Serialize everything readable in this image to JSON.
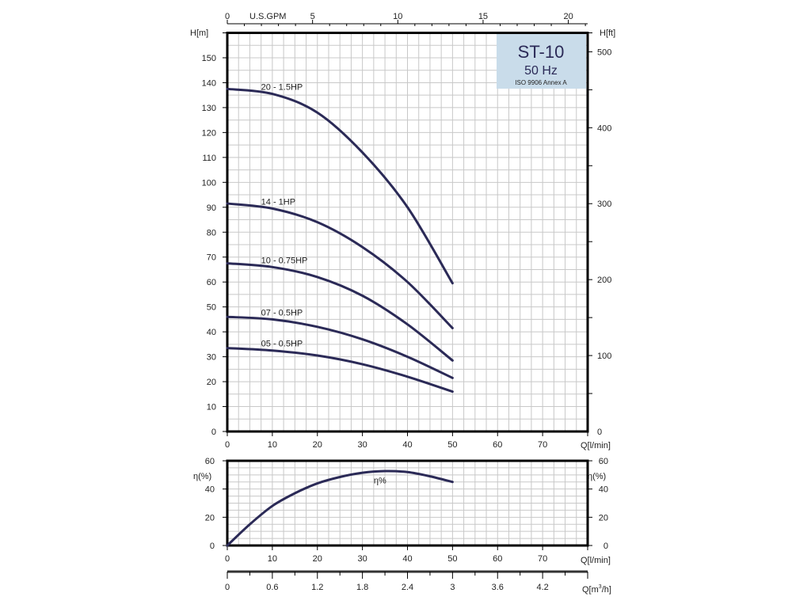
{
  "chart_data": [
    {
      "type": "line",
      "title": "ST-10",
      "subtitle": "50 Hz",
      "note": "ISO 9906 Annex A",
      "xlabel": "Q[l/min]",
      "ylabel": "H[m]",
      "ylabel_right": "H[ft]",
      "xlabel_top": "U.S.GPM",
      "xlim": [
        0,
        80
      ],
      "ylim": [
        0,
        160
      ],
      "x_ticks": [
        0,
        10,
        20,
        30,
        40,
        50,
        60,
        70
      ],
      "y_ticks": [
        0,
        10,
        20,
        30,
        40,
        50,
        60,
        70,
        80,
        90,
        100,
        110,
        120,
        130,
        140,
        150
      ],
      "y_right_ticks": [
        0,
        100,
        200,
        300,
        400,
        500
      ],
      "x_top_ticks": [
        0,
        5,
        10,
        15,
        20
      ],
      "grid": true,
      "series": [
        {
          "name": "20 - 1.5HP",
          "x": [
            0,
            10,
            20,
            30,
            40,
            50
          ],
          "y": [
            137.5,
            135.5,
            128,
            112,
            90,
            59.5
          ]
        },
        {
          "name": "14 - 1HP",
          "x": [
            0,
            10,
            20,
            30,
            40,
            50
          ],
          "y": [
            91.5,
            89.5,
            84,
            74,
            60,
            41.5
          ]
        },
        {
          "name": "10 - 0.75HP",
          "x": [
            0,
            10,
            20,
            30,
            40,
            50
          ],
          "y": [
            67.5,
            66,
            62,
            54.5,
            43,
            28.5
          ]
        },
        {
          "name": "07 - 0.5HP",
          "x": [
            0,
            10,
            20,
            30,
            40,
            50
          ],
          "y": [
            46,
            45,
            42,
            37,
            30,
            21.5
          ]
        },
        {
          "name": "05 - 0.5HP",
          "x": [
            0,
            10,
            20,
            30,
            40,
            50
          ],
          "y": [
            33.5,
            32.5,
            30.5,
            27,
            22,
            16
          ]
        }
      ]
    },
    {
      "type": "line",
      "xlabel": "Q[l/min]",
      "ylabel": "η(%)",
      "ylabel_right": "η(%)",
      "xlim": [
        0,
        80
      ],
      "ylim": [
        0,
        60
      ],
      "x_ticks": [
        0,
        10,
        20,
        30,
        40,
        50,
        60,
        70
      ],
      "y_ticks": [
        0,
        20,
        40,
        60
      ],
      "grid": true,
      "series": [
        {
          "name": "η%",
          "x": [
            0,
            5,
            10,
            15,
            20,
            25,
            30,
            35,
            40,
            45,
            50
          ],
          "y": [
            0,
            15,
            28,
            37,
            44,
            48.5,
            51.5,
            52.7,
            52,
            49,
            45
          ]
        }
      ],
      "secondary_x_axis": {
        "label": "Q[m³/h]",
        "label_base": "Q[m",
        "label_sup": "3",
        "label_end": "/h]",
        "ticks": [
          "0",
          "0.6",
          "1.2",
          "1.8",
          "2.4",
          "3",
          "3.6",
          "4.2"
        ],
        "range": [
          0,
          4.8
        ]
      }
    }
  ],
  "colors": {
    "curve": "#2b2a57",
    "grid": "#c8c8c8",
    "title_box": "#c9dcea",
    "title_text": "#2b2a57"
  }
}
